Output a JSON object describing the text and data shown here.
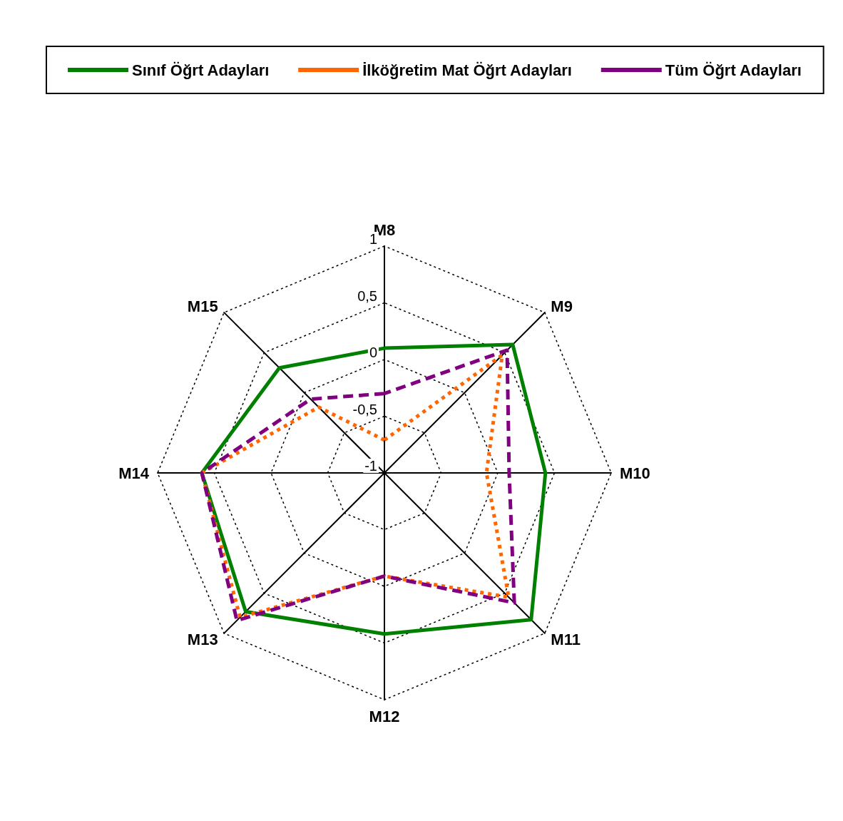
{
  "chart_data": {
    "type": "radar",
    "categories": [
      "M8",
      "M9",
      "M10",
      "M11",
      "M12",
      "M13",
      "M14",
      "M15"
    ],
    "ylim": [
      -1,
      1
    ],
    "yticks": [
      {
        "value": -1,
        "label": "-1"
      },
      {
        "value": -0.5,
        "label": "-0,5"
      },
      {
        "value": 0,
        "label": "0"
      },
      {
        "value": 0.5,
        "label": "0,5"
      },
      {
        "value": 1,
        "label": "1"
      }
    ],
    "grid": true,
    "legend": "top",
    "marker": "none",
    "series": [
      {
        "name": "Sınıf Öğrt Adayları",
        "color": "#008000",
        "line_style": "solid",
        "values": [
          0.1,
          0.6,
          0.42,
          0.83,
          0.42,
          0.73,
          0.61,
          0.31
        ]
      },
      {
        "name": "İlköğretim Mat Öğrt Adayları",
        "color": "#ff6600",
        "line_style": "dotted",
        "values": [
          -0.71,
          0.47,
          -0.1,
          0.55,
          -0.09,
          0.8,
          0.61,
          -0.18
        ]
      },
      {
        "name": "Tüm Öğrt Adayları",
        "color": "#800080",
        "line_style": "dashed",
        "values": [
          -0.3,
          0.53,
          0.1,
          0.62,
          -0.09,
          0.84,
          0.61,
          -0.08
        ]
      }
    ]
  }
}
